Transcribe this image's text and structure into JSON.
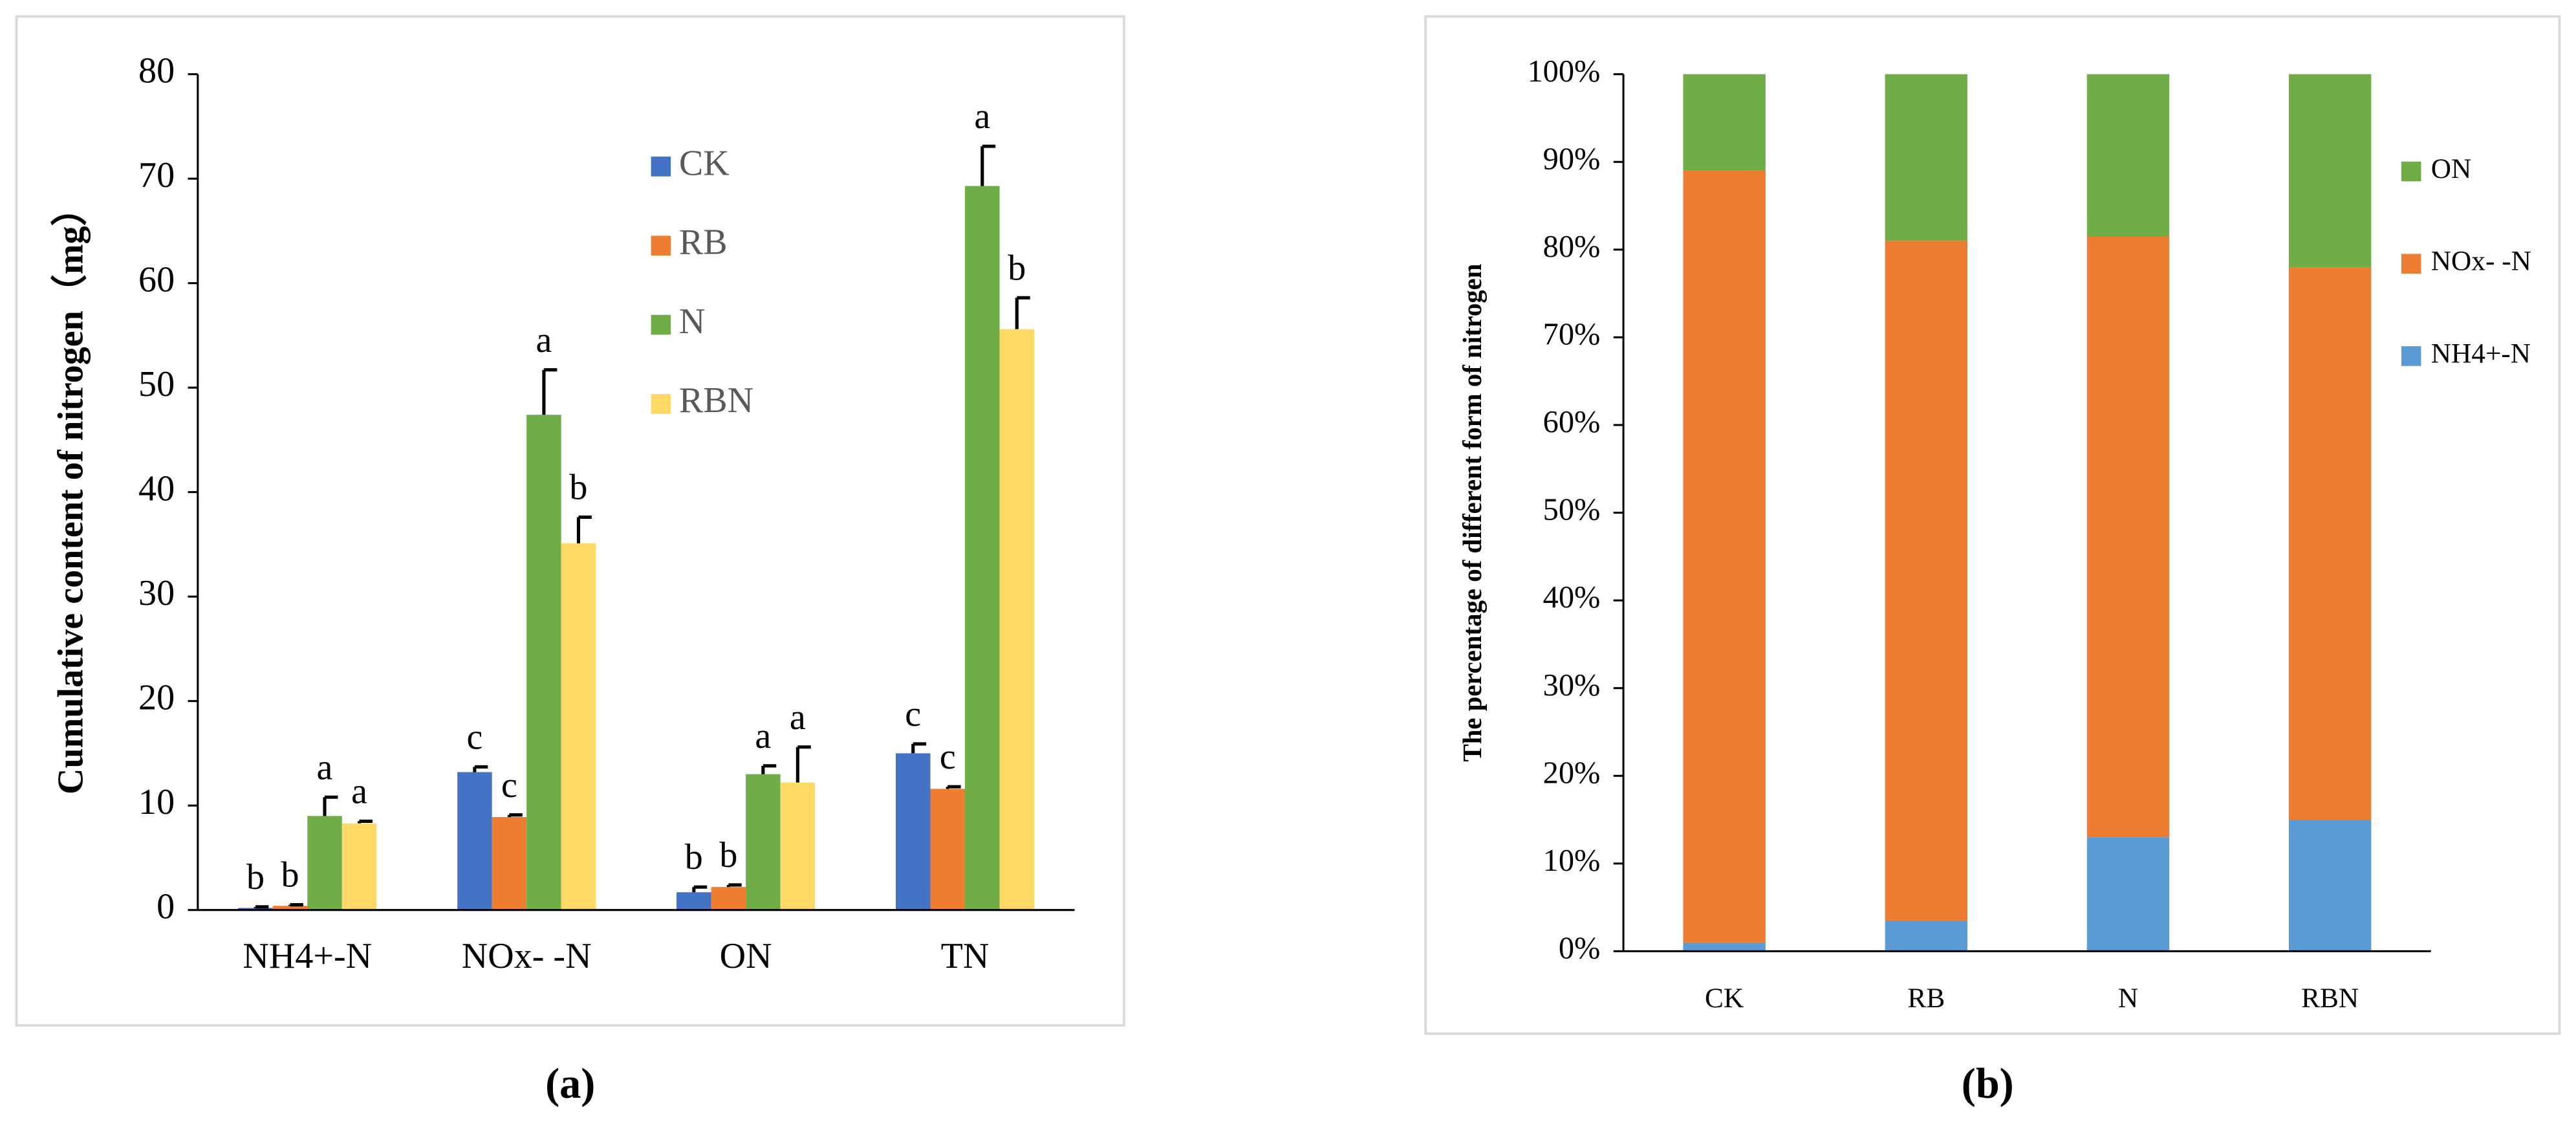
{
  "chart_data": [
    {
      "type": "bar",
      "caption": "(a)",
      "ylabel": "Cumulative content of nitrogen（mg）",
      "categories": [
        "NH4+-N",
        "NOx- -N",
        "ON",
        "TN"
      ],
      "series": [
        {
          "name": "CK",
          "color": "#4472c4",
          "values": [
            0.2,
            13.2,
            1.7,
            15.0
          ],
          "errors": [
            0.1,
            0.5,
            0.5,
            0.9
          ],
          "annotations": [
            "b",
            "c",
            "b",
            "c"
          ]
        },
        {
          "name": "RB",
          "color": "#ed7d31",
          "values": [
            0.4,
            8.9,
            2.2,
            11.6
          ],
          "errors": [
            0.1,
            0.2,
            0.2,
            0.2
          ],
          "annotations": [
            "b",
            "c",
            "b",
            "c"
          ]
        },
        {
          "name": "N",
          "color": "#70ad47",
          "values": [
            9.0,
            47.4,
            13.0,
            69.3
          ],
          "errors": [
            1.8,
            4.3,
            0.8,
            3.8
          ],
          "annotations": [
            "a",
            "a",
            "a",
            "a"
          ]
        },
        {
          "name": "RBN",
          "color": "#ffd966",
          "values": [
            8.3,
            35.1,
            12.2,
            55.6
          ],
          "errors": [
            0.2,
            2.5,
            3.4,
            3.0
          ],
          "annotations": [
            "a",
            "b",
            "a",
            "b"
          ]
        }
      ],
      "ylim": [
        0,
        80
      ],
      "yticks": [
        0,
        10,
        20,
        30,
        40,
        50,
        60,
        70,
        80
      ],
      "legend": "upper center"
    },
    {
      "type": "stacked_bar",
      "caption": "(b)",
      "ylabel": "The percentage of different form of nitrogen",
      "categories": [
        "CK",
        "RB",
        "N",
        "RBN"
      ],
      "series": [
        {
          "name": "NH4+-N",
          "color": "#5b9bd5",
          "values": [
            1,
            3.5,
            13,
            15
          ]
        },
        {
          "name": "NOx- -N",
          "color": "#ed7d31",
          "values": [
            88,
            77.5,
            68.5,
            63
          ]
        },
        {
          "name": "ON",
          "color": "#70ad47",
          "values": [
            11,
            19,
            18.5,
            22
          ]
        }
      ],
      "ylim": [
        0,
        100
      ],
      "yticks": [
        {
          "value": 0,
          "label": "0%"
        },
        {
          "value": 10,
          "label": "10%"
        },
        {
          "value": 20,
          "label": "20%"
        },
        {
          "value": 30,
          "label": "30%"
        },
        {
          "value": 40,
          "label": "40%"
        },
        {
          "value": 50,
          "label": "50%"
        },
        {
          "value": 60,
          "label": "60%"
        },
        {
          "value": 70,
          "label": "70%"
        },
        {
          "value": 80,
          "label": "80%"
        },
        {
          "value": 90,
          "label": "90%"
        },
        {
          "value": 100,
          "label": "100%"
        }
      ],
      "legend": "right"
    }
  ]
}
